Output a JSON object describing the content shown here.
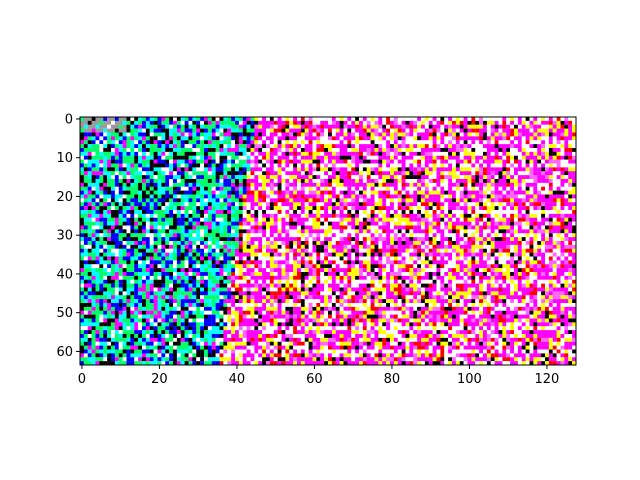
{
  "chart_data": {
    "type": "heatmap",
    "title": "",
    "xlabel": "",
    "ylabel": "",
    "image_shape": [
      64,
      128
    ],
    "xlim": [
      -0.5,
      127.5
    ],
    "ylim": [
      63.5,
      -0.5
    ],
    "x_ticks": [
      0,
      20,
      40,
      60,
      80,
      100,
      120
    ],
    "y_ticks": [
      0,
      10,
      20,
      30,
      40,
      50,
      60
    ],
    "x_tick_labels": [
      "0",
      "20",
      "40",
      "60",
      "80",
      "100",
      "120"
    ],
    "y_tick_labels": [
      "0",
      "10",
      "20",
      "30",
      "40",
      "50",
      "60"
    ],
    "grid": false,
    "legend": "none",
    "palette": [
      "#ff00ff",
      "#ffffff",
      "#ffff00",
      "#ff0000",
      "#00ff66",
      "#0000ff",
      "#000000",
      "#00ffff",
      "#ff66ff",
      "#9a9a9a"
    ],
    "regions": [
      {
        "description": "left block, x 0 to 45",
        "dominant_colors": [
          "#00ff66",
          "#0000ff",
          "#000000",
          "#00ffff"
        ]
      },
      {
        "description": "main field, x 45 to 128",
        "dominant_colors": [
          "#ff00ff",
          "#ffffff",
          "#ffff00",
          "#ff0000"
        ]
      },
      {
        "description": "top-left corner",
        "dominant_colors": [
          "#9a9a9a"
        ]
      }
    ]
  }
}
